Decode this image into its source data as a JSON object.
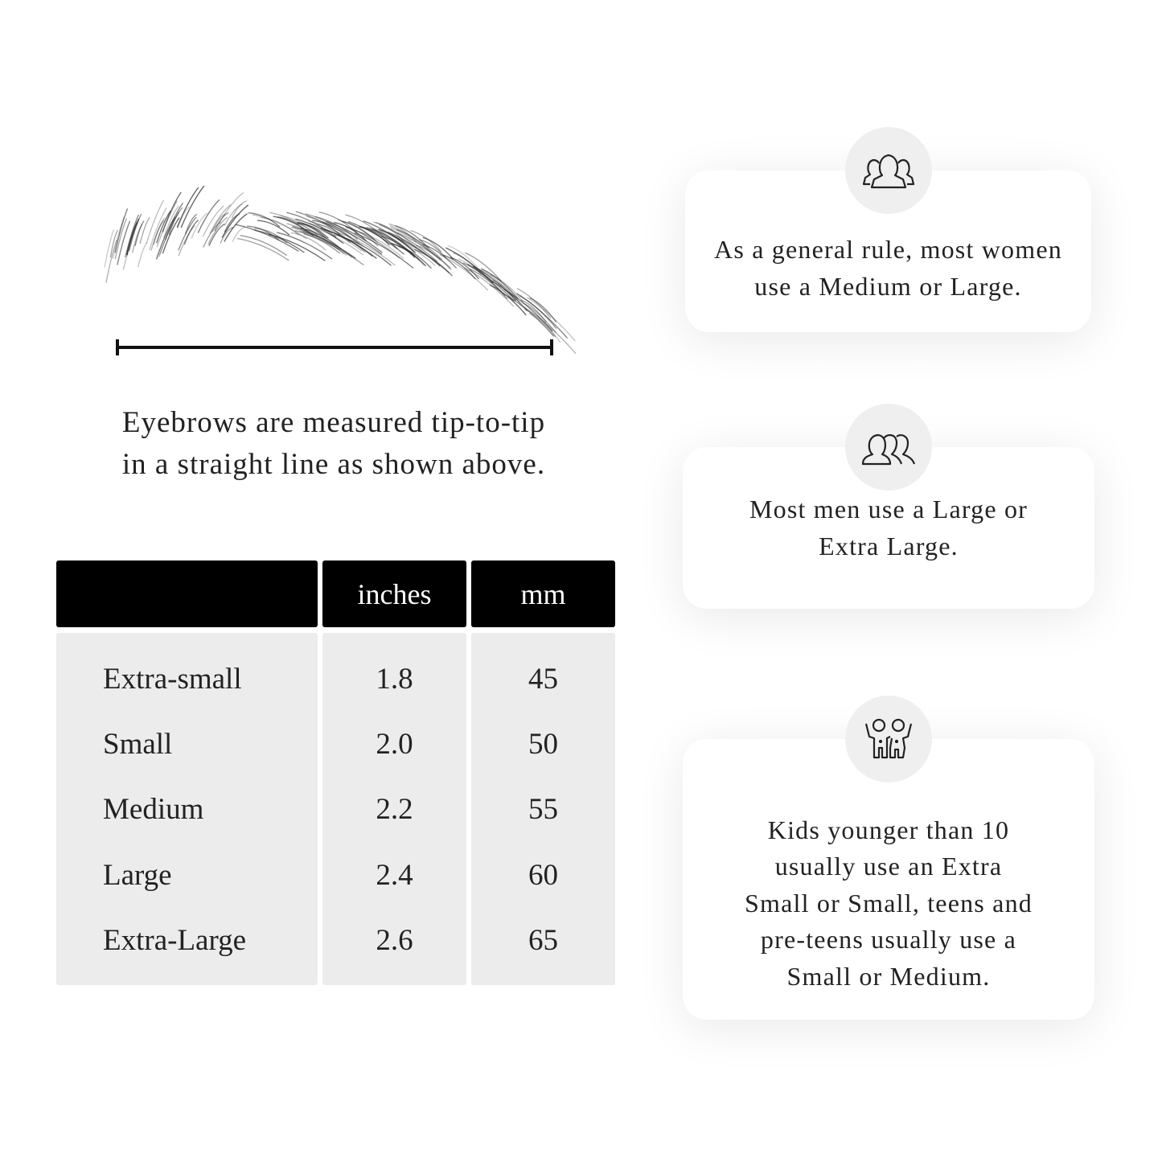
{
  "measure_caption": [
    "Eyebrows are measured tip-to-tip",
    "in a straight line as shown above."
  ],
  "table": {
    "headers": [
      "",
      "inches",
      "mm"
    ],
    "rows": [
      {
        "size": "Extra-small",
        "inches": "1.8",
        "mm": "45"
      },
      {
        "size": "Small",
        "inches": "2.0",
        "mm": "50"
      },
      {
        "size": "Medium",
        "inches": "2.2",
        "mm": "55"
      },
      {
        "size": "Large",
        "inches": "2.4",
        "mm": "60"
      },
      {
        "size": "Extra-Large",
        "inches": "2.6",
        "mm": "65"
      }
    ]
  },
  "cards": [
    {
      "icon": "women-group-icon",
      "lines": [
        "As a general rule, most women",
        "use a Medium or Large."
      ]
    },
    {
      "icon": "men-group-icon",
      "lines": [
        "Most men use a Large or",
        "Extra Large."
      ]
    },
    {
      "icon": "kids-icon",
      "lines": [
        "Kids younger than 10",
        "usually use an Extra",
        "Small or Small, teens and",
        "pre-teens usually use a",
        "Small or Medium."
      ]
    }
  ],
  "colors": {
    "header_bg": "#000000",
    "cell_bg": "#ececec",
    "icon_circle": "#efefef"
  }
}
